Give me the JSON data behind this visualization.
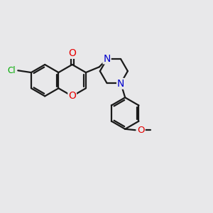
{
  "bg_color": "#e8e8ea",
  "bond_color": "#1a1a1a",
  "bond_width": 1.6,
  "atom_colors": {
    "O": "#e60000",
    "N": "#0000cc",
    "Cl": "#00aa00",
    "C": "#1a1a1a"
  },
  "font_size": 9.5,
  "fig_size": [
    3.0,
    3.0
  ],
  "dpi": 100
}
